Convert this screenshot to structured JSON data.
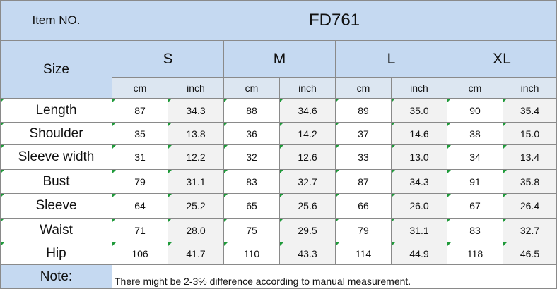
{
  "header": {
    "item_label": "Item NO.",
    "item_value": "FD761",
    "size_label": "Size"
  },
  "sizes": [
    "S",
    "M",
    "L",
    "XL"
  ],
  "units": [
    "cm",
    "inch"
  ],
  "rows": [
    {
      "label": "Length",
      "values": [
        "87",
        "34.3",
        "88",
        "34.6",
        "89",
        "35.0",
        "90",
        "35.4"
      ]
    },
    {
      "label": "Shoulder",
      "values": [
        "35",
        "13.8",
        "36",
        "14.2",
        "37",
        "14.6",
        "38",
        "15.0"
      ]
    },
    {
      "label": "Sleeve width",
      "values": [
        "31",
        "12.2",
        "32",
        "12.6",
        "33",
        "13.0",
        "34",
        "13.4"
      ]
    },
    {
      "label": "Bust",
      "values": [
        "79",
        "31.1",
        "83",
        "32.7",
        "87",
        "34.3",
        "91",
        "35.8"
      ]
    },
    {
      "label": "Sleeve",
      "values": [
        "64",
        "25.2",
        "65",
        "25.6",
        "66",
        "26.0",
        "67",
        "26.4"
      ]
    },
    {
      "label": "Waist",
      "values": [
        "71",
        "28.0",
        "75",
        "29.5",
        "79",
        "31.1",
        "83",
        "32.7"
      ]
    },
    {
      "label": "Hip",
      "values": [
        "106",
        "41.7",
        "110",
        "43.3",
        "114",
        "44.9",
        "118",
        "46.5"
      ]
    }
  ],
  "note": {
    "label": "Note:",
    "text": "There might be 2-3% difference according to manual measurement."
  },
  "colors": {
    "header_bg": "#c5d9f1",
    "unit_bg": "#dce6f1",
    "alt_cell_bg": "#f2f2f2",
    "marker": "#1f9a3a"
  }
}
